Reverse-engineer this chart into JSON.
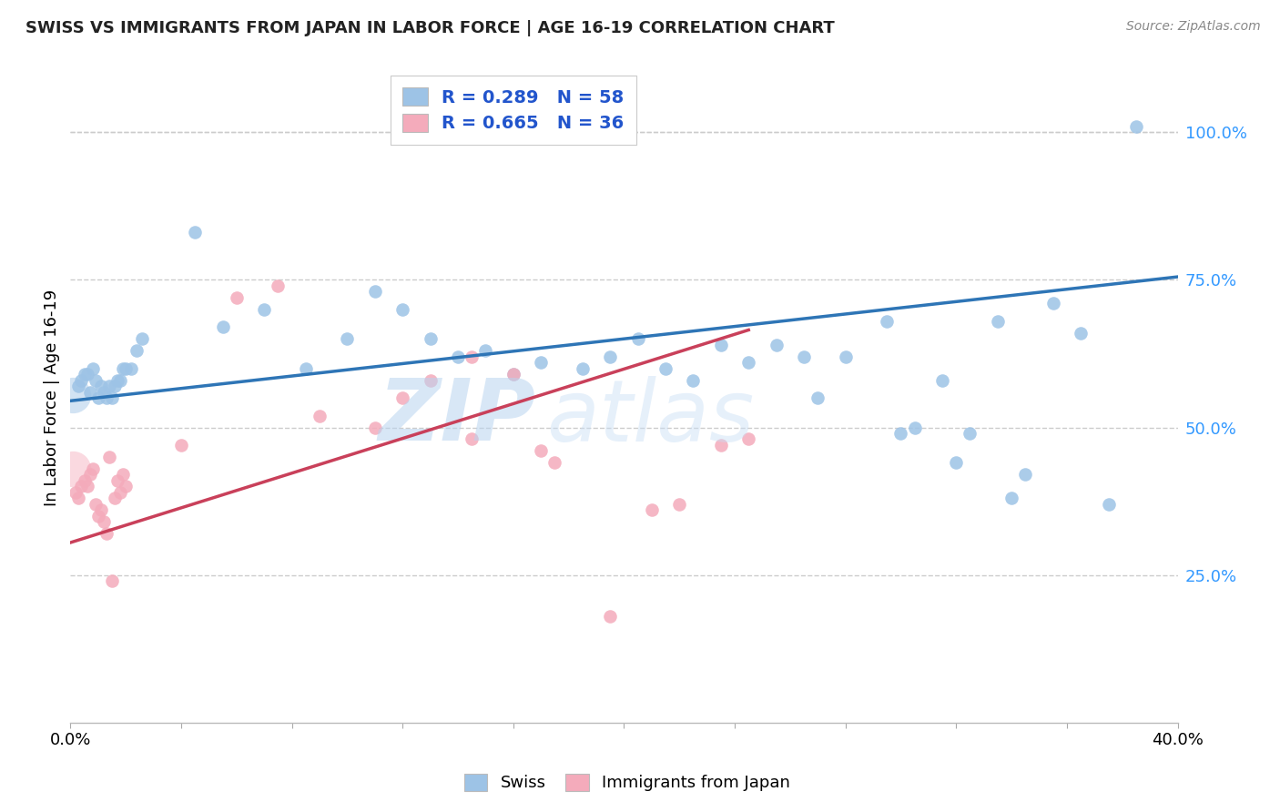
{
  "title": "SWISS VS IMMIGRANTS FROM JAPAN IN LABOR FORCE | AGE 16-19 CORRELATION CHART",
  "source": "Source: ZipAtlas.com",
  "ylabel": "In Labor Force | Age 16-19",
  "xlim": [
    0.0,
    0.4
  ],
  "ylim": [
    0.0,
    1.1
  ],
  "ytick_values": [
    0.25,
    0.5,
    0.75,
    1.0
  ],
  "xtick_values": [
    0.0,
    0.04,
    0.08,
    0.12,
    0.16,
    0.2,
    0.24,
    0.28,
    0.32,
    0.36,
    0.4
  ],
  "swiss_R": 0.289,
  "swiss_N": 58,
  "japan_R": 0.665,
  "japan_N": 36,
  "swiss_color": "#9DC3E6",
  "japan_color": "#F4ABBB",
  "swiss_line_color": "#2E75B6",
  "japan_line_color": "#C9405A",
  "legend_label_swiss": "Swiss",
  "legend_label_japan": "Immigrants from Japan",
  "watermark_zip": "ZIP",
  "watermark_atlas": "atlas",
  "swiss_x": [
    0.003,
    0.004,
    0.005,
    0.006,
    0.007,
    0.008,
    0.009,
    0.01,
    0.011,
    0.012,
    0.013,
    0.014,
    0.015,
    0.016,
    0.017,
    0.018,
    0.019,
    0.02,
    0.022,
    0.024,
    0.026,
    0.045,
    0.055,
    0.07,
    0.085,
    0.1,
    0.11,
    0.12,
    0.13,
    0.14,
    0.15,
    0.16,
    0.17,
    0.185,
    0.195,
    0.205,
    0.215,
    0.225,
    0.235,
    0.245,
    0.255,
    0.265,
    0.27,
    0.28,
    0.295,
    0.305,
    0.315,
    0.325,
    0.335,
    0.345,
    0.355,
    0.365,
    0.375,
    0.385,
    0.3,
    0.32,
    0.34
  ],
  "swiss_y": [
    0.57,
    0.58,
    0.59,
    0.59,
    0.56,
    0.6,
    0.58,
    0.55,
    0.57,
    0.56,
    0.55,
    0.57,
    0.55,
    0.57,
    0.58,
    0.58,
    0.6,
    0.6,
    0.6,
    0.63,
    0.65,
    0.83,
    0.67,
    0.7,
    0.6,
    0.65,
    0.73,
    0.7,
    0.65,
    0.62,
    0.63,
    0.59,
    0.61,
    0.6,
    0.62,
    0.65,
    0.6,
    0.58,
    0.64,
    0.61,
    0.64,
    0.62,
    0.55,
    0.62,
    0.68,
    0.5,
    0.58,
    0.49,
    0.68,
    0.42,
    0.71,
    0.66,
    0.37,
    1.01,
    0.49,
    0.44,
    0.38
  ],
  "swiss_cluster_x": [
    0.001
  ],
  "swiss_cluster_y": [
    0.555
  ],
  "swiss_cluster_size": 800,
  "japan_x": [
    0.002,
    0.003,
    0.004,
    0.005,
    0.006,
    0.007,
    0.008,
    0.009,
    0.01,
    0.011,
    0.012,
    0.013,
    0.014,
    0.015,
    0.016,
    0.017,
    0.018,
    0.019,
    0.02,
    0.04,
    0.06,
    0.075,
    0.09,
    0.11,
    0.12,
    0.13,
    0.145,
    0.16,
    0.175,
    0.195,
    0.21,
    0.22,
    0.235,
    0.245,
    0.145,
    0.17
  ],
  "japan_y": [
    0.39,
    0.38,
    0.4,
    0.41,
    0.4,
    0.42,
    0.43,
    0.37,
    0.35,
    0.36,
    0.34,
    0.32,
    0.45,
    0.24,
    0.38,
    0.41,
    0.39,
    0.42,
    0.4,
    0.47,
    0.72,
    0.74,
    0.52,
    0.5,
    0.55,
    0.58,
    0.48,
    0.59,
    0.44,
    0.18,
    0.36,
    0.37,
    0.47,
    0.48,
    0.62,
    0.46
  ],
  "japan_cluster_x": [
    0.001
  ],
  "japan_cluster_y": [
    0.43
  ],
  "japan_cluster_size": 800,
  "swiss_line_x0": 0.0,
  "swiss_line_x1": 0.4,
  "swiss_line_y0": 0.545,
  "swiss_line_y1": 0.755,
  "japan_line_x0": 0.0,
  "japan_line_x1": 0.245,
  "japan_line_y0": 0.305,
  "japan_line_y1": 0.665
}
